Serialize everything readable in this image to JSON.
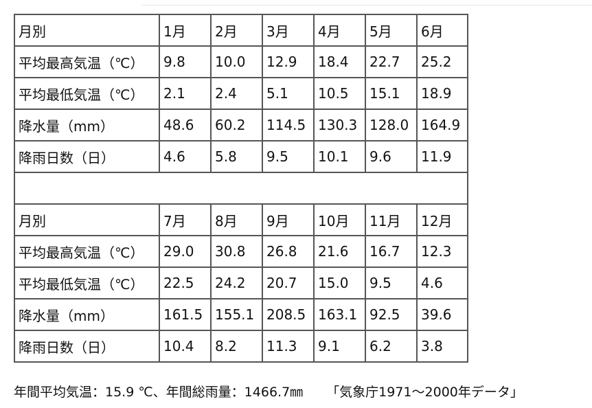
{
  "table": {
    "blocks": [
      {
        "header": [
          "月別",
          "1月",
          "2月",
          "3月",
          "4月",
          "5月",
          "6月"
        ],
        "rows": [
          [
            "平均最高気温（℃）",
            "9.8",
            "10.0",
            "12.9",
            "18.4",
            "22.7",
            "25.2"
          ],
          [
            "平均最低気温（℃）",
            "2.1",
            "2.4",
            "5.1",
            "10.5",
            "15.1",
            "18.9"
          ],
          [
            "降水量（mm）",
            "48.6",
            "60.2",
            "114.5",
            "130.3",
            "128.0",
            "164.9"
          ],
          [
            "降雨日数（日）",
            "4.6",
            "5.8",
            "9.5",
            "10.1",
            "9.6",
            "11.9"
          ]
        ]
      },
      {
        "header": [
          "月別",
          "7月",
          "8月",
          "9月",
          "10月",
          "11月",
          "12月"
        ],
        "rows": [
          [
            "平均最高気温（℃）",
            "29.0",
            "30.8",
            "26.8",
            "21.6",
            "16.7",
            "12.3"
          ],
          [
            "平均最低気温（℃）",
            "22.5",
            "24.2",
            "20.7",
            "15.0",
            "9.5",
            "4.6"
          ],
          [
            "降水量（mm）",
            "161.5",
            "155.1",
            "208.5",
            "163.1",
            "92.5",
            "39.6"
          ],
          [
            "降雨日数（日）",
            "10.4",
            "8.2",
            "11.3",
            "9.1",
            "6.2",
            "3.8"
          ]
        ]
      }
    ]
  },
  "footer": {
    "summary": "年間平均気温：15.9 ℃、年間総雨量：1466.7㎜",
    "source": "「気象庁1971～2000年データ」"
  }
}
